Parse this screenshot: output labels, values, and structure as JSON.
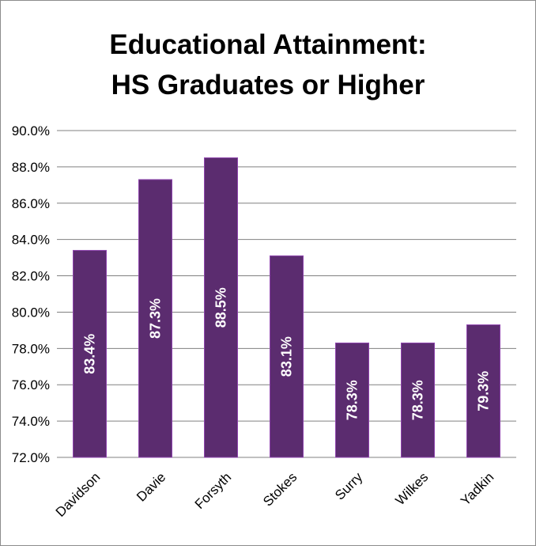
{
  "chart_data": {
    "type": "bar",
    "title_lines": [
      "Educational Attainment:",
      "HS Graduates or Higher"
    ],
    "categories": [
      "Davidson",
      "Davie",
      "Forsyth",
      "Stokes",
      "Surry",
      "Wilkes",
      "Yadkin"
    ],
    "values": [
      83.4,
      87.3,
      88.5,
      83.1,
      78.3,
      78.3,
      79.3
    ],
    "data_labels": [
      "83.4%",
      "87.3%",
      "88.5%",
      "83.1%",
      "78.3%",
      "78.3%",
      "79.3%"
    ],
    "y_ticks": [
      72,
      74,
      76,
      78,
      80,
      82,
      84,
      86,
      88,
      90
    ],
    "y_tick_labels": [
      "72.0%",
      "74.0%",
      "76.0%",
      "78.0%",
      "80.0%",
      "82.0%",
      "84.0%",
      "86.0%",
      "88.0%",
      "90.0%"
    ],
    "ylim": [
      72,
      90
    ],
    "xlabel": "",
    "ylabel": "",
    "grid": true,
    "legend": "none",
    "colors": {
      "bar": "#5b2c6f",
      "bar_edge": "#8e44ad",
      "grid": "#808080",
      "label": "#ffffff",
      "text": "#000000"
    }
  }
}
